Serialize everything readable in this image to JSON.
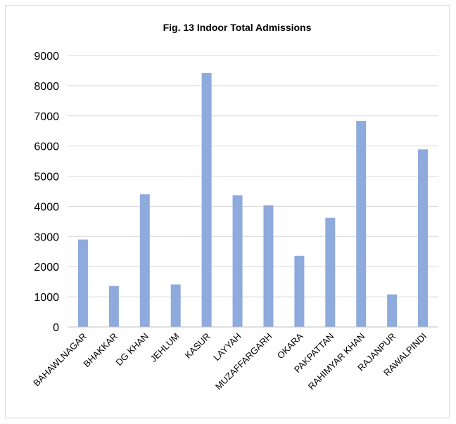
{
  "chart_data": {
    "type": "bar",
    "title": "Fig. 13 Indoor Total Admissions",
    "xlabel": "",
    "ylabel": "",
    "categories": [
      "BAHAWLNAGAR",
      "BHAKKAR",
      "DG KHAN",
      "JEHLUM",
      "KASUR",
      "LAYYAH",
      "MUZAFFARGARH",
      "OKARA",
      "PAKPATTAN",
      "RAHIMYAR KHAN",
      "RAJANPUR",
      "RAWALPINDI"
    ],
    "values": [
      2900,
      1360,
      4400,
      1410,
      8420,
      4370,
      4030,
      2360,
      3620,
      6830,
      1080,
      5890
    ],
    "ylim": [
      0,
      9000
    ],
    "yticks": [
      0,
      1000,
      2000,
      3000,
      4000,
      5000,
      6000,
      7000,
      8000,
      9000
    ],
    "grid": true,
    "legend": "none",
    "bar_color": "#8faadc"
  }
}
